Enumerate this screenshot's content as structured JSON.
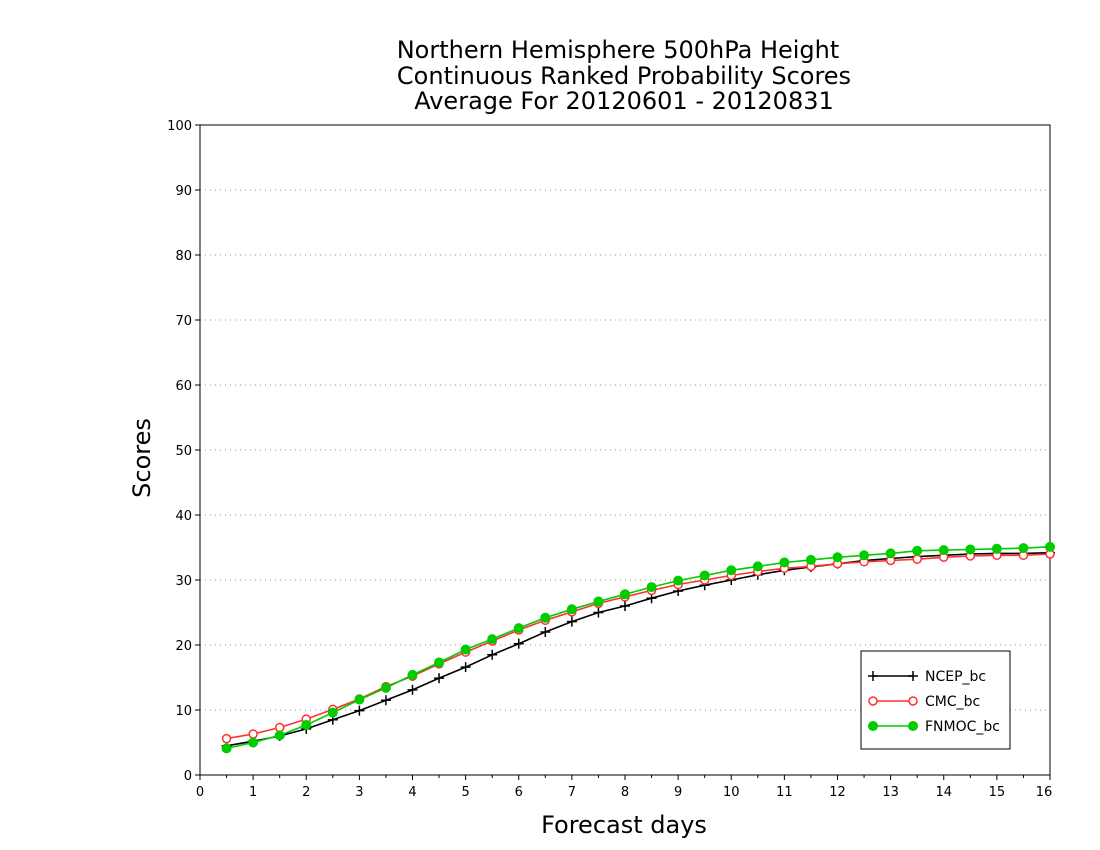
{
  "chart_data": {
    "type": "line",
    "title": [
      "Northern Hemisphere 500hPa Height",
      "Continuous Ranked Probability Scores",
      "Average For 20120601 - 20120831"
    ],
    "xlabel": "Forecast days",
    "ylabel": "Scores",
    "xlim": [
      0,
      16
    ],
    "ylim": [
      0,
      100
    ],
    "xticks": [
      "0",
      "1",
      "2",
      "3",
      "4",
      "5",
      "6",
      "7",
      "8",
      "9",
      "10",
      "11",
      "12",
      "13",
      "14",
      "15",
      "16"
    ],
    "yticks": [
      "0",
      "10",
      "20",
      "30",
      "40",
      "50",
      "60",
      "70",
      "80",
      "90",
      "100"
    ],
    "grid": "horizontal dotted",
    "legend_position": "bottom-right",
    "x": [
      0.5,
      1,
      1.5,
      2,
      2.5,
      3,
      3.5,
      4,
      4.5,
      5,
      5.5,
      6,
      6.5,
      7,
      7.5,
      8,
      8.5,
      9,
      9.5,
      10,
      10.5,
      11,
      11.5,
      12,
      12.5,
      13,
      13.5,
      14,
      14.5,
      15,
      15.5,
      16
    ],
    "series": [
      {
        "name": "NCEP_bc",
        "color": "#000000",
        "marker": "plus",
        "values": [
          4.5,
          5.2,
          6.0,
          7.1,
          8.5,
          9.9,
          11.5,
          13.1,
          14.9,
          16.6,
          18.5,
          20.2,
          22.0,
          23.6,
          25.0,
          26.0,
          27.2,
          28.3,
          29.2,
          30.0,
          30.8,
          31.5,
          32.0,
          32.5,
          33.0,
          33.3,
          33.6,
          33.8,
          34.0,
          34.1,
          34.1,
          34.2
        ]
      },
      {
        "name": "CMC_bc",
        "color": "#ff3030",
        "marker": "open-circle",
        "values": [
          5.6,
          6.3,
          7.3,
          8.6,
          10.1,
          11.7,
          13.6,
          15.2,
          17.1,
          18.9,
          20.6,
          22.3,
          23.8,
          25.1,
          26.4,
          27.4,
          28.4,
          29.3,
          30.0,
          30.7,
          31.3,
          31.8,
          32.1,
          32.5,
          32.8,
          33.0,
          33.2,
          33.5,
          33.7,
          33.8,
          33.8,
          34.0
        ]
      },
      {
        "name": "FNMOC_bc",
        "color": "#00cc00",
        "marker": "filled-circle",
        "values": [
          4.1,
          5.0,
          6.1,
          7.7,
          9.6,
          11.6,
          13.4,
          15.4,
          17.3,
          19.3,
          20.9,
          22.6,
          24.2,
          25.5,
          26.7,
          27.8,
          28.9,
          29.9,
          30.7,
          31.5,
          32.1,
          32.7,
          33.1,
          33.5,
          33.8,
          34.1,
          34.5,
          34.6,
          34.7,
          34.8,
          34.9,
          35.1
        ]
      }
    ]
  }
}
